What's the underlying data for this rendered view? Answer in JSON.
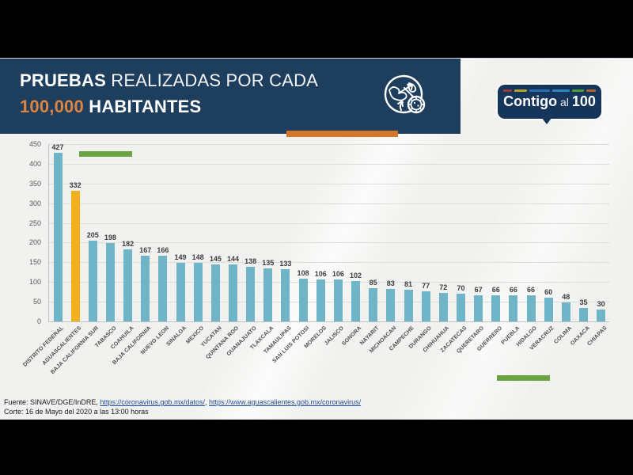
{
  "header": {
    "title_line1_bold": "PRUEBAS",
    "title_line1_rest": " REALIZADAS POR CADA",
    "title_line2_accent": "100,000",
    "title_line2_rest": " HABITANTES",
    "banner_color": "#1e3e5e",
    "accent_text_color": "#dd8440",
    "underline_color": "#d4772b"
  },
  "logo": {
    "text_bold": "Contigo",
    "text_mid": " al ",
    "text_num": "100",
    "bg_color": "#16355a",
    "dash_colors": [
      "#9e3a3a",
      "#b5a02c",
      "#2b6cb0",
      "#2f86c0",
      "#4e9e3d",
      "#b0622f"
    ]
  },
  "chart_data": {
    "type": "bar",
    "title": "PRUEBAS REALIZADAS POR CADA 100,000 HABITANTES",
    "categories": [
      "DISTRITO FEDERAL",
      "AGUASCALIENTES",
      "BAJA CALIFORNIA SUR",
      "TABASCO",
      "COAHUILA",
      "BAJA CALIFORNIA",
      "NUEVO LEON",
      "SINALOA",
      "MEXICO",
      "YUCATAN",
      "QUINTANA ROO",
      "GUANAJUATO",
      "TLAXCALA",
      "TAMAULIPAS",
      "SAN LUIS POTOSI",
      "MORELOS",
      "JALISCO",
      "SONORA",
      "NAYARIT",
      "MICHOACAN",
      "CAMPECHE",
      "DURANGO",
      "CHIHUAHUA",
      "ZACATECAS",
      "QUERETARO",
      "GUERRERO",
      "PUEBLA",
      "HIDALGO",
      "VERACRUZ",
      "COLIMA",
      "OAXACA",
      "CHIAPAS"
    ],
    "values": [
      427,
      332,
      205,
      198,
      182,
      167,
      166,
      149,
      148,
      145,
      144,
      138,
      135,
      133,
      108,
      106,
      106,
      102,
      85,
      83,
      81,
      77,
      72,
      70,
      67,
      66,
      66,
      66,
      60,
      48,
      35,
      30
    ],
    "highlight_index": 1,
    "bar_color": "#70b4c8",
    "highlight_color": "#f1b11d",
    "xlabel": "",
    "ylabel": "",
    "ylim": [
      0,
      450
    ],
    "ytick_step": 50,
    "grid": true,
    "legend": false
  },
  "annotations": {
    "green_color": "#6ca341"
  },
  "footer": {
    "fuente_prefix": "Fuente: SINAVE/DGE/InDRE, ",
    "link1": "https://coronavirus.gob.mx/datos/",
    "separator": ", ",
    "link2": "https://www.aguascalientes.gob.mx/coronavirus/",
    "corte": "Corte: 16 de Mayo del 2020 a las 13:00 horas"
  }
}
